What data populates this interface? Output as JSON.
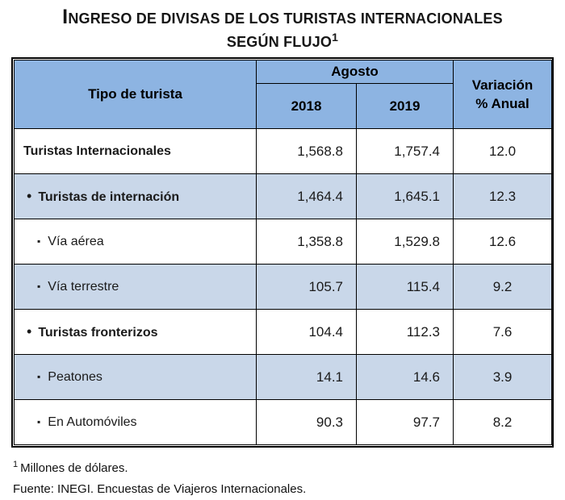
{
  "title": {
    "line1": "INGRESO DE DIVISAS DE LOS TURISTAS INTERNACIONALES",
    "line2": "SEGÚN FLUJO",
    "superscript": "1"
  },
  "table": {
    "header": {
      "tipo": "Tipo de turista",
      "group": "Agosto",
      "y2018": "2018",
      "y2019": "2019",
      "variacion_line1": "Variación",
      "variacion_line2": "% Anual"
    },
    "rows": [
      {
        "bullet": "",
        "label": "Turistas Internacionales",
        "v2018": "1,568.8",
        "v2019": "1,757.4",
        "variacion": "12.0"
      },
      {
        "bullet": "•",
        "label": "Turistas de internación",
        "v2018": "1,464.4",
        "v2019": "1,645.1",
        "variacion": "12.3"
      },
      {
        "bullet": "▪",
        "label": "Vía aérea",
        "v2018": "1,358.8",
        "v2019": "1,529.8",
        "variacion": "12.6"
      },
      {
        "bullet": "▪",
        "label": "Vía terrestre",
        "v2018": "105.7",
        "v2019": "115.4",
        "variacion": "9.2"
      },
      {
        "bullet": "•",
        "label": "Turistas fronterizos",
        "v2018": "104.4",
        "v2019": "112.3",
        "variacion": "7.6"
      },
      {
        "bullet": "▪",
        "label": "Peatones",
        "v2018": "14.1",
        "v2019": "14.6",
        "variacion": "3.9"
      },
      {
        "bullet": "▪",
        "label": "En Automóviles",
        "v2018": "90.3",
        "v2019": "97.7",
        "variacion": "8.2"
      }
    ]
  },
  "footnote": {
    "marker": "1",
    "text": "Millones de dólares."
  },
  "source": "Fuente: INEGI. Encuestas de Viajeros Internacionales.",
  "colors": {
    "header_bg": "#8DB4E2",
    "stripe_bg": "#C9D7E9",
    "border": "#000000",
    "text": "#1A1A1A"
  },
  "chart_data": {
    "type": "table",
    "title": "Ingreso de divisas de los turistas internacionales según flujo",
    "unit": "Millones de dólares",
    "columns": [
      "Tipo de turista",
      "Agosto 2018",
      "Agosto 2019",
      "Variación % Anual"
    ],
    "rows": [
      [
        "Turistas Internacionales",
        1568.8,
        1757.4,
        12.0
      ],
      [
        "Turistas de internación",
        1464.4,
        1645.1,
        12.3
      ],
      [
        "Vía aérea",
        1358.8,
        1529.8,
        12.6
      ],
      [
        "Vía terrestre",
        105.7,
        115.4,
        9.2
      ],
      [
        "Turistas fronterizos",
        104.4,
        112.3,
        7.6
      ],
      [
        "Peatones",
        14.1,
        14.6,
        3.9
      ],
      [
        "En Automóviles",
        90.3,
        97.7,
        8.2
      ]
    ],
    "source": "Fuente: INEGI. Encuestas de Viajeros Internacionales."
  }
}
